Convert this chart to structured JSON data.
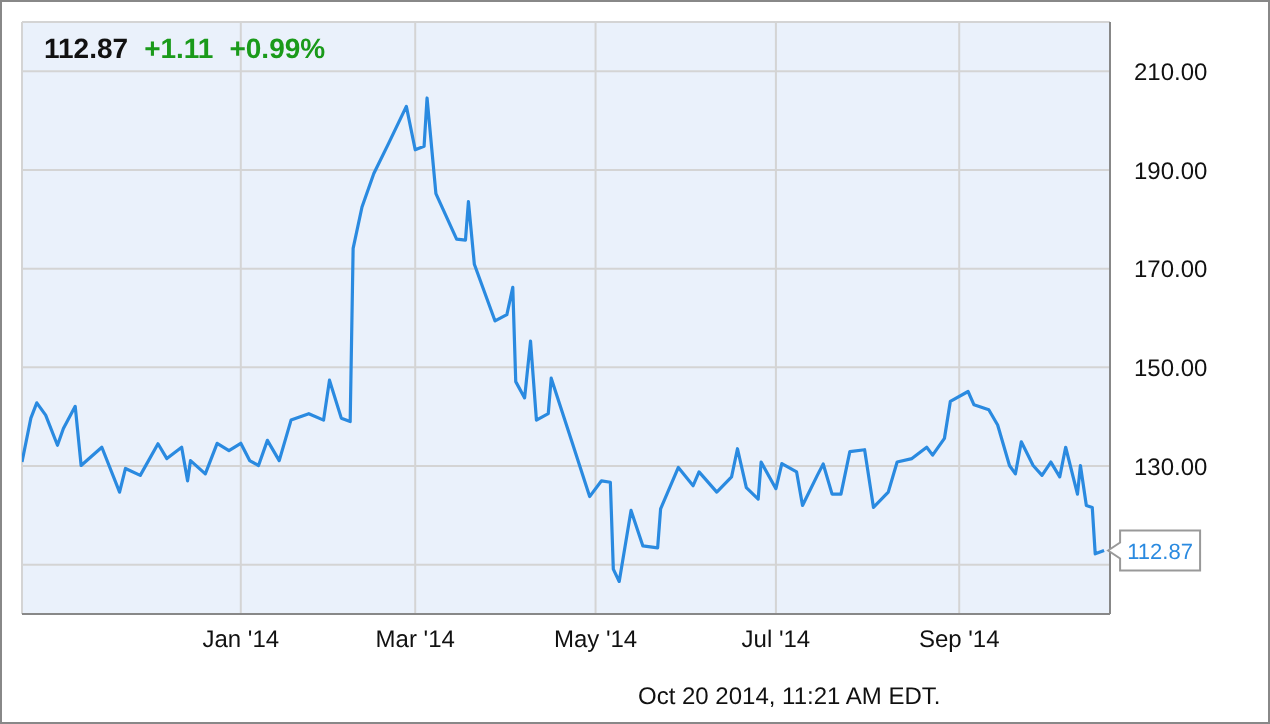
{
  "chart_data": {
    "type": "line",
    "annotations": [
      "112.87",
      "+1.11",
      "+0.99%",
      "Oct 20 2014, 11:21 AM EDT."
    ],
    "x": [
      "2013-10-19",
      "2013-10-22",
      "2013-10-24",
      "2013-10-27",
      "2013-10-31",
      "2013-11-02",
      "2013-11-06",
      "2013-11-08",
      "2013-11-15",
      "2013-11-21",
      "2013-11-23",
      "2013-11-28",
      "2013-12-04",
      "2013-12-07",
      "2013-12-12",
      "2013-12-14",
      "2013-12-15",
      "2013-12-20",
      "2013-12-24",
      "2013-12-28",
      "2014-01-01",
      "2014-01-04",
      "2014-01-07",
      "2014-01-10",
      "2014-01-14",
      "2014-01-18",
      "2014-01-24",
      "2014-01-29",
      "2014-01-31",
      "2014-02-04",
      "2014-02-07",
      "2014-02-08",
      "2014-02-11",
      "2014-02-15",
      "2014-02-20",
      "2014-02-26",
      "2014-03-01",
      "2014-03-04",
      "2014-03-05",
      "2014-03-08",
      "2014-03-15",
      "2014-03-18",
      "2014-03-19",
      "2014-03-21",
      "2014-03-28",
      "2014-04-01",
      "2014-04-03",
      "2014-04-04",
      "2014-04-07",
      "2014-04-09",
      "2014-04-11",
      "2014-04-15",
      "2014-04-16",
      "2014-04-23",
      "2014-04-29",
      "2014-05-03",
      "2014-05-06",
      "2014-05-07",
      "2014-05-09",
      "2014-05-13",
      "2014-05-17",
      "2014-05-22",
      "2014-05-23",
      "2014-05-29",
      "2014-06-03",
      "2014-06-05",
      "2014-06-11",
      "2014-06-16",
      "2014-06-18",
      "2014-06-21",
      "2014-06-25",
      "2014-06-26",
      "2014-07-01",
      "2014-07-03",
      "2014-07-08",
      "2014-07-10",
      "2014-07-15",
      "2014-07-17",
      "2014-07-20",
      "2014-07-23",
      "2014-07-26",
      "2014-07-31",
      "2014-08-03",
      "2014-08-08",
      "2014-08-11",
      "2014-08-16",
      "2014-08-21",
      "2014-08-23",
      "2014-08-27",
      "2014-08-29",
      "2014-09-04",
      "2014-09-06",
      "2014-09-11",
      "2014-09-14",
      "2014-09-18",
      "2014-09-20",
      "2014-09-22",
      "2014-09-26",
      "2014-09-29",
      "2014-10-02",
      "2014-10-05",
      "2014-10-07",
      "2014-10-11",
      "2014-10-12",
      "2014-10-14",
      "2014-10-16",
      "2014-10-17",
      "2014-10-20"
    ],
    "series": [
      {
        "color": "#2a8ae0",
        "values": [
          130.8,
          139.7,
          142.8,
          140.3,
          134.2,
          137.6,
          142.1,
          130.1,
          133.8,
          124.7,
          129.5,
          128.1,
          134.5,
          131.5,
          133.8,
          127.0,
          131.1,
          128.4,
          134.6,
          133.1,
          134.6,
          131.1,
          130.1,
          135.2,
          131.1,
          139.3,
          140.6,
          139.3,
          147.4,
          139.7,
          139.0,
          174.1,
          182.5,
          189.3,
          195.4,
          202.9,
          194.1,
          194.8,
          204.6,
          185.2,
          176.0,
          175.8,
          183.6,
          170.9,
          159.4,
          160.7,
          166.2,
          147.1,
          143.8,
          155.3,
          139.3,
          140.6,
          147.8,
          134.9,
          123.8,
          127.0,
          126.7,
          109.1,
          106.6,
          121.0,
          113.8,
          113.4,
          121.3,
          129.7,
          126.0,
          128.8,
          124.7,
          127.8,
          133.5,
          125.6,
          123.3,
          130.8,
          125.4,
          130.5,
          128.8,
          122.0,
          128.1,
          130.4,
          124.3,
          124.3,
          132.9,
          133.3,
          121.6,
          124.7,
          130.8,
          131.5,
          133.8,
          132.2,
          135.6,
          143.1,
          145.1,
          142.4,
          141.4,
          138.3,
          130.1,
          128.4,
          134.9,
          130.1,
          128.1,
          130.8,
          127.8,
          133.8,
          124.3,
          130.1,
          122.0,
          121.6,
          112.2,
          112.87
        ],
        "value_labels": [
          null,
          null,
          null,
          null,
          null,
          null,
          null,
          null,
          null,
          null,
          null,
          null,
          null,
          null,
          null,
          null,
          null,
          null,
          null,
          null,
          null,
          null,
          null,
          null,
          null,
          null,
          null,
          null,
          null,
          null,
          null,
          null,
          null,
          null,
          null,
          null,
          null,
          null,
          null,
          null,
          null,
          null,
          null,
          null,
          null,
          null,
          null,
          null,
          null,
          null,
          null,
          null,
          null,
          null,
          null,
          null,
          null,
          null,
          null,
          null,
          null,
          null,
          null,
          null,
          null,
          null,
          null,
          null,
          null,
          null,
          null,
          null,
          null,
          null,
          null,
          null,
          null,
          null,
          null,
          null,
          null,
          null,
          null,
          null,
          null,
          null,
          null,
          null,
          null,
          null,
          null,
          null,
          null,
          null,
          null,
          null,
          null,
          null,
          null,
          null,
          null,
          null,
          null,
          null,
          null,
          null,
          null,
          "112.87"
        ]
      }
    ],
    "xlim": [
      "2013-10-19",
      "2014-10-22"
    ],
    "xticks": [
      {
        "value": "2014-01-01",
        "label": "Jan '14"
      },
      {
        "value": "2014-03-01",
        "label": "Mar '14"
      },
      {
        "value": "2014-05-01",
        "label": "May '14"
      },
      {
        "value": "2014-07-01",
        "label": "Jul '14"
      },
      {
        "value": "2014-09-01",
        "label": "Sep '14"
      }
    ],
    "ylim": [
      100,
      220
    ],
    "yticks": [
      {
        "value": 110,
        "label": null
      },
      {
        "value": 130,
        "label": "130.00"
      },
      {
        "value": 150,
        "label": "150.00"
      },
      {
        "value": 170,
        "label": "170.00"
      },
      {
        "value": 190,
        "label": "190.00"
      },
      {
        "value": 210,
        "label": "210.00"
      }
    ],
    "grid": true,
    "legend": false,
    "marker": "none",
    "line_style": "solid"
  }
}
